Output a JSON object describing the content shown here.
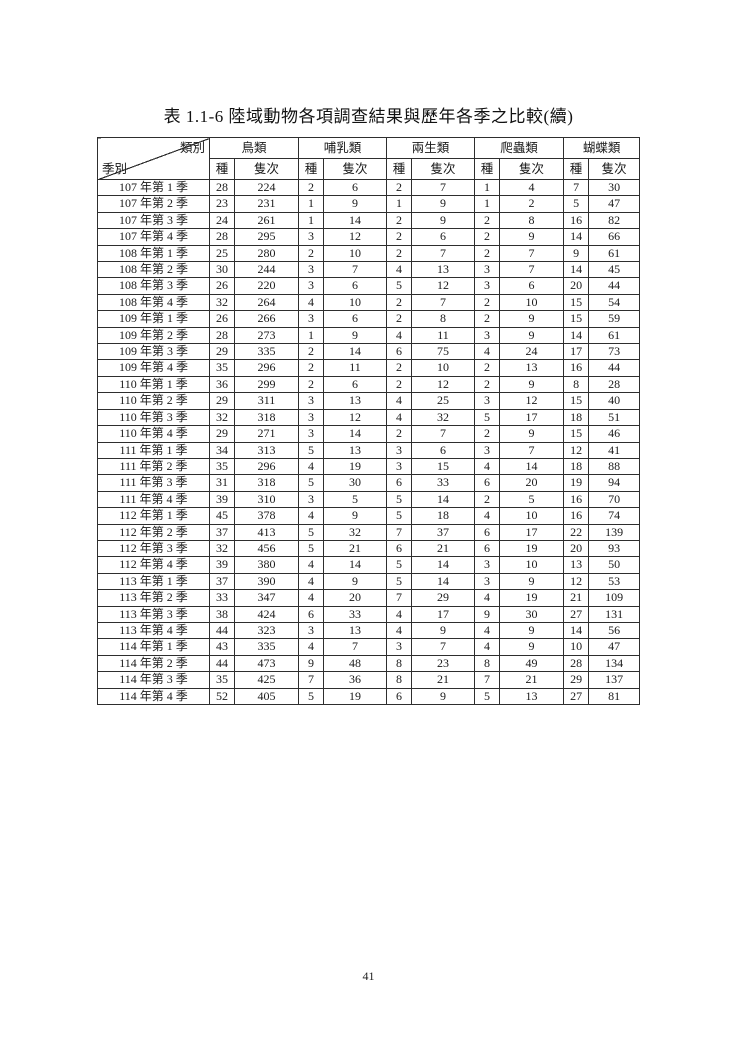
{
  "title": "表 1.1-6 陸域動物各項調查結果與歷年各季之比較(續)",
  "page": {
    "number": "41"
  },
  "table": {
    "corner": {
      "top_right": "類別",
      "bottom_left": "季別"
    },
    "categories": [
      "鳥類",
      "哺乳類",
      "兩生類",
      "爬蟲類",
      "蝴蝶類"
    ],
    "species_label": "種",
    "count_label": "隻次",
    "rows": [
      {
        "label": "107 年第 1 季",
        "values": [
          28,
          224,
          2,
          6,
          2,
          7,
          1,
          4,
          7,
          30
        ]
      },
      {
        "label": "107 年第 2 季",
        "values": [
          23,
          231,
          1,
          9,
          1,
          9,
          1,
          2,
          5,
          47
        ]
      },
      {
        "label": "107 年第 3 季",
        "values": [
          24,
          261,
          1,
          14,
          2,
          9,
          2,
          8,
          16,
          82
        ]
      },
      {
        "label": "107 年第 4 季",
        "values": [
          28,
          295,
          3,
          12,
          2,
          6,
          2,
          9,
          14,
          66
        ]
      },
      {
        "label": "108 年第 1 季",
        "values": [
          25,
          280,
          2,
          10,
          2,
          7,
          2,
          7,
          9,
          61
        ]
      },
      {
        "label": "108 年第 2 季",
        "values": [
          30,
          244,
          3,
          7,
          4,
          13,
          3,
          7,
          14,
          45
        ]
      },
      {
        "label": "108 年第 3 季",
        "values": [
          26,
          220,
          3,
          6,
          5,
          12,
          3,
          6,
          20,
          44
        ]
      },
      {
        "label": "108 年第 4 季",
        "values": [
          32,
          264,
          4,
          10,
          2,
          7,
          2,
          10,
          15,
          54
        ]
      },
      {
        "label": "109 年第 1 季",
        "values": [
          26,
          266,
          3,
          6,
          2,
          8,
          2,
          9,
          15,
          59
        ]
      },
      {
        "label": "109 年第 2 季",
        "values": [
          28,
          273,
          1,
          9,
          4,
          11,
          3,
          9,
          14,
          61
        ]
      },
      {
        "label": "109 年第 3 季",
        "values": [
          29,
          335,
          2,
          14,
          6,
          75,
          4,
          24,
          17,
          73
        ]
      },
      {
        "label": "109 年第 4 季",
        "values": [
          35,
          296,
          2,
          11,
          2,
          10,
          2,
          13,
          16,
          44
        ]
      },
      {
        "label": "110 年第 1 季",
        "values": [
          36,
          299,
          2,
          6,
          2,
          12,
          2,
          9,
          8,
          28
        ]
      },
      {
        "label": "110 年第 2 季",
        "values": [
          29,
          311,
          3,
          13,
          4,
          25,
          3,
          12,
          15,
          40
        ]
      },
      {
        "label": "110 年第 3 季",
        "values": [
          32,
          318,
          3,
          12,
          4,
          32,
          5,
          17,
          18,
          51
        ]
      },
      {
        "label": "110 年第 4 季",
        "values": [
          29,
          271,
          3,
          14,
          2,
          7,
          2,
          9,
          15,
          46
        ]
      },
      {
        "label": "111 年第 1 季",
        "values": [
          34,
          313,
          5,
          13,
          3,
          6,
          3,
          7,
          12,
          41
        ]
      },
      {
        "label": "111 年第 2 季",
        "values": [
          35,
          296,
          4,
          19,
          3,
          15,
          4,
          14,
          18,
          88
        ]
      },
      {
        "label": "111 年第 3 季",
        "values": [
          31,
          318,
          5,
          30,
          6,
          33,
          6,
          20,
          19,
          94
        ]
      },
      {
        "label": "111 年第 4 季",
        "values": [
          39,
          310,
          3,
          5,
          5,
          14,
          2,
          5,
          16,
          70
        ]
      },
      {
        "label": "112 年第 1 季",
        "values": [
          45,
          378,
          4,
          9,
          5,
          18,
          4,
          10,
          16,
          74
        ]
      },
      {
        "label": "112 年第 2 季",
        "values": [
          37,
          413,
          5,
          32,
          7,
          37,
          6,
          17,
          22,
          139
        ]
      },
      {
        "label": "112 年第 3 季",
        "values": [
          32,
          456,
          5,
          21,
          6,
          21,
          6,
          19,
          20,
          93
        ]
      },
      {
        "label": "112 年第 4 季",
        "values": [
          39,
          380,
          4,
          14,
          5,
          14,
          3,
          10,
          13,
          50
        ]
      },
      {
        "label": "113 年第 1 季",
        "values": [
          37,
          390,
          4,
          9,
          5,
          14,
          3,
          9,
          12,
          53
        ]
      },
      {
        "label": "113 年第 2 季",
        "values": [
          33,
          347,
          4,
          20,
          7,
          29,
          4,
          19,
          21,
          109
        ]
      },
      {
        "label": "113 年第 3 季",
        "values": [
          38,
          424,
          6,
          33,
          4,
          17,
          9,
          30,
          27,
          131
        ]
      },
      {
        "label": "113 年第 4 季",
        "values": [
          44,
          323,
          3,
          13,
          4,
          9,
          4,
          9,
          14,
          56
        ]
      },
      {
        "label": "114 年第 1 季",
        "values": [
          43,
          335,
          4,
          7,
          3,
          7,
          4,
          9,
          10,
          47
        ]
      },
      {
        "label": "114 年第 2 季",
        "values": [
          44,
          473,
          9,
          48,
          8,
          23,
          8,
          49,
          28,
          134
        ]
      },
      {
        "label": "114 年第 3 季",
        "values": [
          35,
          425,
          7,
          36,
          8,
          21,
          7,
          21,
          29,
          137
        ]
      },
      {
        "label": "114 年第 4 季",
        "values": [
          52,
          405,
          5,
          19,
          6,
          9,
          5,
          13,
          27,
          81
        ]
      }
    ]
  }
}
